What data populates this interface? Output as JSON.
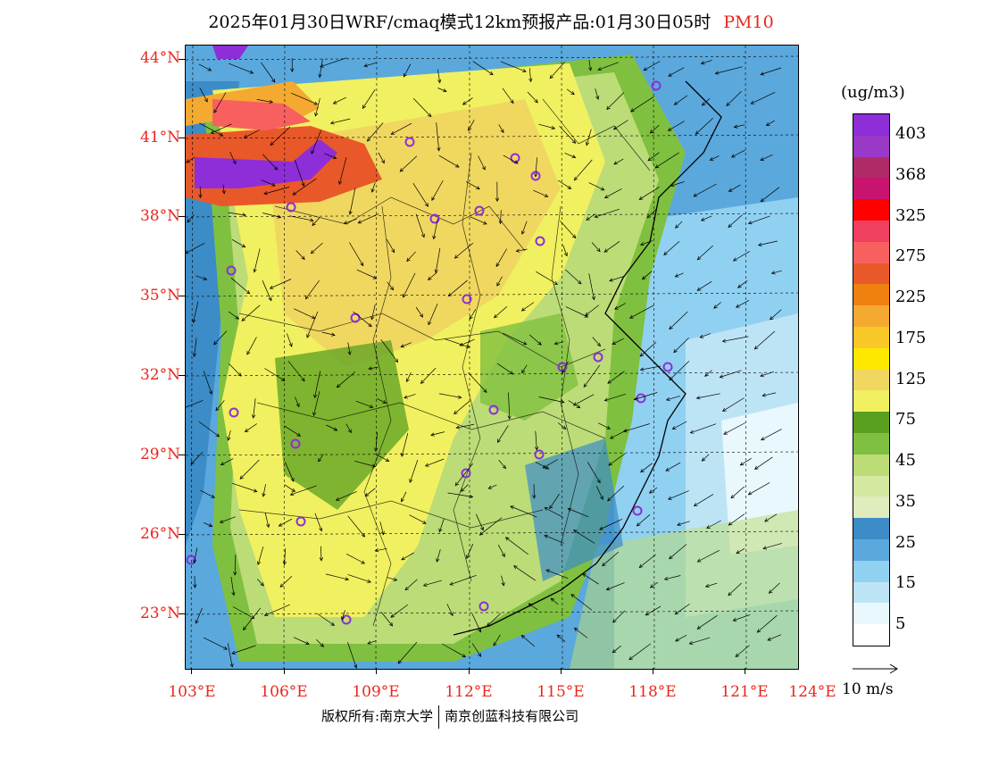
{
  "title": {
    "main": "2025年01月30日WRF/cmaq模式12km预报产品:01月30日05时",
    "variable": "PM10"
  },
  "axes": {
    "lat_labels": [
      "44°N",
      "41°N",
      "38°N",
      "35°N",
      "32°N",
      "29°N",
      "26°N",
      "23°N"
    ],
    "lon_labels": [
      "103°E",
      "106°E",
      "109°E",
      "112°E",
      "115°E",
      "118°E",
      "121°E",
      "124°E"
    ]
  },
  "legend": {
    "unit": "(ug/m3)",
    "labels": [
      "403",
      "368",
      "325",
      "275",
      "225",
      "175",
      "125",
      "75",
      "45",
      "35",
      "25",
      "15",
      "5"
    ],
    "colors": [
      "#8e2ed8",
      "#9a38c8",
      "#b02a68",
      "#c8146e",
      "#ff0000",
      "#f04060",
      "#f86060",
      "#e85828",
      "#f08010",
      "#f4aa30",
      "#f8c828",
      "#ffe800",
      "#f0d860",
      "#f0f060",
      "#5aa020",
      "#80c040",
      "#bcdc78",
      "#d4e8a0",
      "#e0ecbc",
      "#3c8cc8",
      "#5aa8dc",
      "#90d0f0",
      "#bce4f4",
      "#e8f8fc",
      "#ffffff"
    ]
  },
  "wind_reference": "10 m/s",
  "copyright": {
    "left": "版权所有:南京大学",
    "right": "南京创蓝科技有限公司"
  }
}
